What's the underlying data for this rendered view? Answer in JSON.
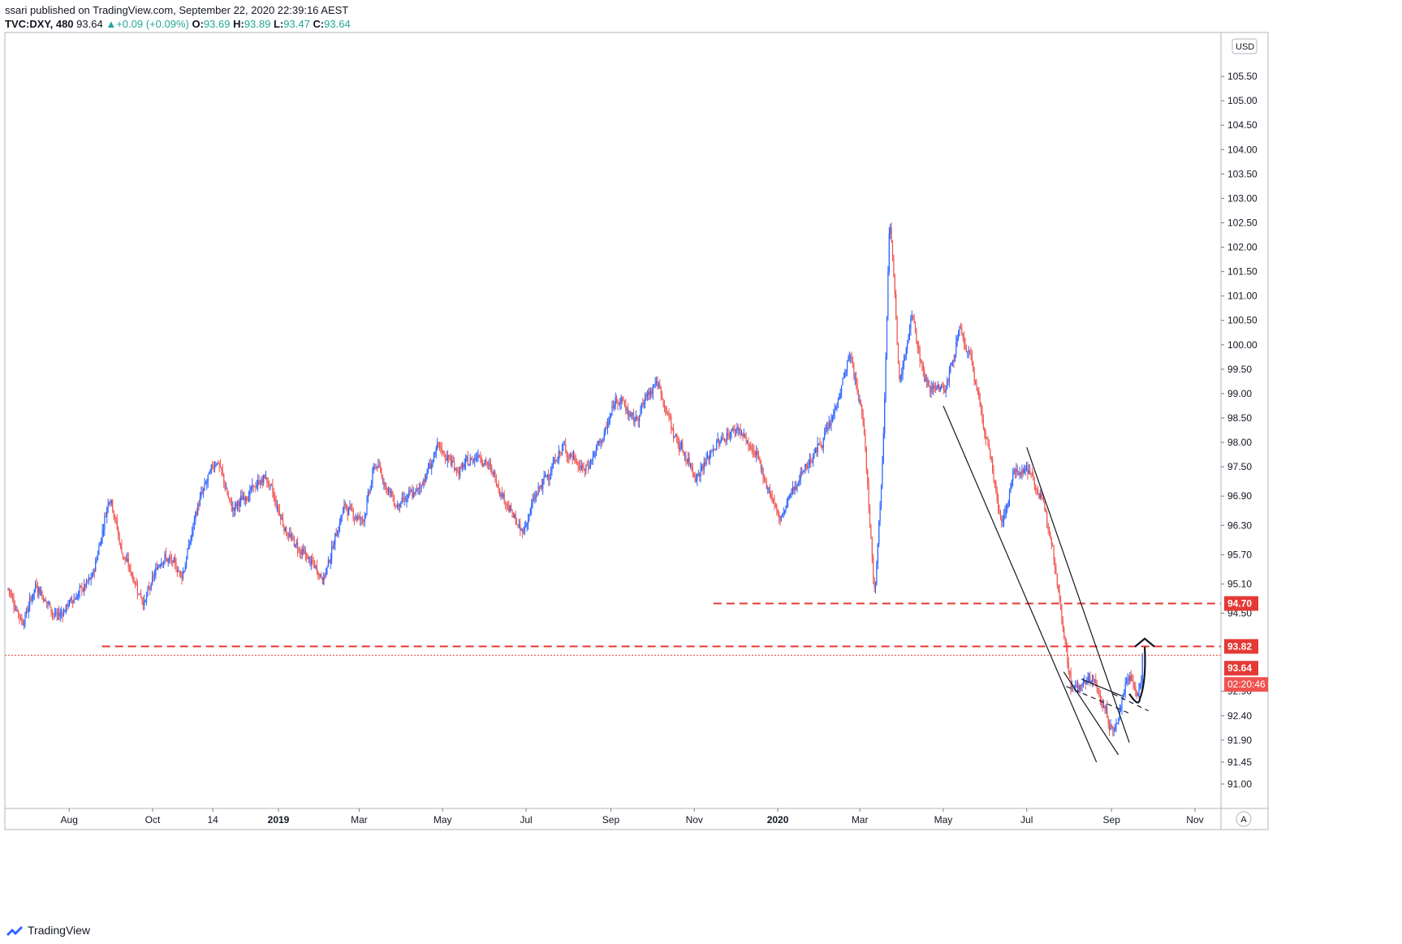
{
  "header": {
    "published": "ssari published on TradingView.com, September 22, 2020 22:39:16 AEST",
    "symbol": "TVC:DXY, 480",
    "last": "93.64",
    "change_arrow": "▲",
    "change": "+0.09 (+0.09%)",
    "o_label": "O:",
    "o_value": "93.69",
    "h_label": "H:",
    "h_value": "93.89",
    "l_label": "L:",
    "l_value": "93.47",
    "c_label": "C:",
    "c_value": "93.64"
  },
  "currency": "USD",
  "auto_button": "A",
  "footer": {
    "brand": "TradingView",
    "logo_icon": "tradingview-logo-icon"
  },
  "colors": {
    "up": "#2962ff",
    "down": "#ef5350",
    "level": "#e53935",
    "trend": "#131722"
  },
  "chart_data": {
    "type": "candlestick",
    "symbol": "TVC:DXY",
    "timeframe": "480",
    "x_range": [
      "2018-06-15",
      "2020-11-20"
    ],
    "y_range": [
      90.5,
      106.4
    ],
    "x_ticks": [
      {
        "date": "2018-08-01",
        "label": "Aug",
        "bold": false
      },
      {
        "date": "2018-10-01",
        "label": "Oct",
        "bold": false
      },
      {
        "date": "2018-11-14",
        "label": "14",
        "bold": false
      },
      {
        "date": "2019-01-01",
        "label": "2019",
        "bold": true
      },
      {
        "date": "2019-03-01",
        "label": "Mar",
        "bold": false
      },
      {
        "date": "2019-05-01",
        "label": "May",
        "bold": false
      },
      {
        "date": "2019-07-01",
        "label": "Jul",
        "bold": false
      },
      {
        "date": "2019-09-01",
        "label": "Sep",
        "bold": false
      },
      {
        "date": "2019-11-01",
        "label": "Nov",
        "bold": false
      },
      {
        "date": "2020-01-01",
        "label": "2020",
        "bold": true
      },
      {
        "date": "2020-03-01",
        "label": "Mar",
        "bold": false
      },
      {
        "date": "2020-05-01",
        "label": "May",
        "bold": false
      },
      {
        "date": "2020-07-01",
        "label": "Jul",
        "bold": false
      },
      {
        "date": "2020-09-01",
        "label": "Sep",
        "bold": false
      },
      {
        "date": "2020-11-01",
        "label": "Nov",
        "bold": false
      }
    ],
    "y_ticks": [
      "105.50",
      "105.00",
      "104.50",
      "104.00",
      "103.50",
      "103.00",
      "102.50",
      "102.00",
      "101.50",
      "101.00",
      "100.50",
      "100.00",
      "99.50",
      "99.00",
      "98.50",
      "98.00",
      "97.50",
      "96.90",
      "96.30",
      "95.70",
      "95.10",
      "94.50",
      "92.90",
      "92.40",
      "91.90",
      "91.45",
      "91.00"
    ],
    "price_path": [
      [
        "2018-06-15",
        95.0
      ],
      [
        "2018-06-25",
        94.3
      ],
      [
        "2018-07-05",
        95.1
      ],
      [
        "2018-07-20",
        94.4
      ],
      [
        "2018-08-01",
        94.8
      ],
      [
        "2018-08-15",
        95.2
      ],
      [
        "2018-08-28",
        97.0
      ],
      [
        "2018-09-05",
        95.8
      ],
      [
        "2018-09-22",
        94.7
      ],
      [
        "2018-10-05",
        95.7
      ],
      [
        "2018-10-20",
        95.3
      ],
      [
        "2018-11-01",
        96.8
      ],
      [
        "2018-11-14",
        97.7
      ],
      [
        "2018-11-25",
        96.6
      ],
      [
        "2018-12-05",
        96.9
      ],
      [
        "2018-12-20",
        97.3
      ],
      [
        "2019-01-05",
        96.1
      ],
      [
        "2019-01-20",
        95.6
      ],
      [
        "2019-01-31",
        95.2
      ],
      [
        "2019-02-15",
        96.7
      ],
      [
        "2019-03-01",
        96.4
      ],
      [
        "2019-03-10",
        97.6
      ],
      [
        "2019-03-25",
        96.7
      ],
      [
        "2019-04-10",
        97.0
      ],
      [
        "2019-04-25",
        97.9
      ],
      [
        "2019-05-10",
        97.4
      ],
      [
        "2019-05-25",
        97.8
      ],
      [
        "2019-06-05",
        97.3
      ],
      [
        "2019-06-25",
        96.1
      ],
      [
        "2019-07-05",
        96.9
      ],
      [
        "2019-07-25",
        97.9
      ],
      [
        "2019-08-10",
        97.4
      ],
      [
        "2019-08-25",
        98.2
      ],
      [
        "2019-09-03",
        99.0
      ],
      [
        "2019-09-15",
        98.4
      ],
      [
        "2019-10-01",
        99.3
      ],
      [
        "2019-10-15",
        98.1
      ],
      [
        "2019-10-31",
        97.3
      ],
      [
        "2019-11-15",
        98.0
      ],
      [
        "2019-11-30",
        98.3
      ],
      [
        "2019-12-15",
        97.6
      ],
      [
        "2019-12-31",
        96.4
      ],
      [
        "2020-01-10",
        97.1
      ],
      [
        "2020-01-25",
        97.8
      ],
      [
        "2020-02-05",
        98.3
      ],
      [
        "2020-02-20",
        99.8
      ],
      [
        "2020-03-01",
        98.4
      ],
      [
        "2020-03-09",
        94.8
      ],
      [
        "2020-03-15",
        97.8
      ],
      [
        "2020-03-20",
        102.9
      ],
      [
        "2020-03-27",
        99.1
      ],
      [
        "2020-04-05",
        100.6
      ],
      [
        "2020-04-15",
        99.2
      ],
      [
        "2020-04-30",
        99.1
      ],
      [
        "2020-05-10",
        100.3
      ],
      [
        "2020-05-20",
        99.5
      ],
      [
        "2020-06-01",
        97.7
      ],
      [
        "2020-06-10",
        96.3
      ],
      [
        "2020-06-20",
        97.5
      ],
      [
        "2020-07-01",
        97.4
      ],
      [
        "2020-07-15",
        96.3
      ],
      [
        "2020-07-31",
        92.9
      ],
      [
        "2020-08-15",
        93.2
      ],
      [
        "2020-08-31",
        92.0
      ],
      [
        "2020-09-10",
        93.3
      ],
      [
        "2020-09-18",
        92.8
      ],
      [
        "2020-09-22",
        93.64
      ]
    ],
    "horizontal_levels": [
      {
        "price": 94.7,
        "label": "94.70",
        "from": "2019-11-15",
        "style": "dashed",
        "color": "#e53935"
      },
      {
        "price": 93.82,
        "label": "93.82",
        "from": "2018-08-25",
        "style": "dashed",
        "color": "#e53935"
      },
      {
        "price": 93.64,
        "label": "93.64",
        "from": "2018-06-15",
        "style": "dotted",
        "color": "#e53935"
      }
    ],
    "trend_lines": [
      {
        "points": [
          [
            "2020-05-01",
            98.75
          ],
          [
            "2020-08-21",
            91.45
          ]
        ]
      },
      {
        "points": [
          [
            "2020-07-01",
            97.9
          ],
          [
            "2020-09-14",
            91.85
          ]
        ]
      },
      {
        "points": [
          [
            "2020-07-28",
            93.3
          ],
          [
            "2020-09-06",
            91.6
          ]
        ]
      },
      {
        "points": [
          [
            "2020-07-30",
            93.0
          ],
          [
            "2020-09-14",
            92.45
          ],
          "dashed"
        ]
      },
      {
        "points": [
          [
            "2020-08-10",
            93.15
          ],
          [
            "2020-09-09",
            92.8
          ]
        ]
      },
      {
        "points": [
          [
            "2020-09-02",
            92.85
          ],
          [
            "2020-09-28",
            92.5
          ],
          "dashed"
        ]
      }
    ],
    "projection_arrow": {
      "from": [
        "2020-09-14",
        92.75
      ],
      "to": [
        "2020-09-30",
        93.98
      ]
    },
    "countdown": "02:20:46"
  }
}
